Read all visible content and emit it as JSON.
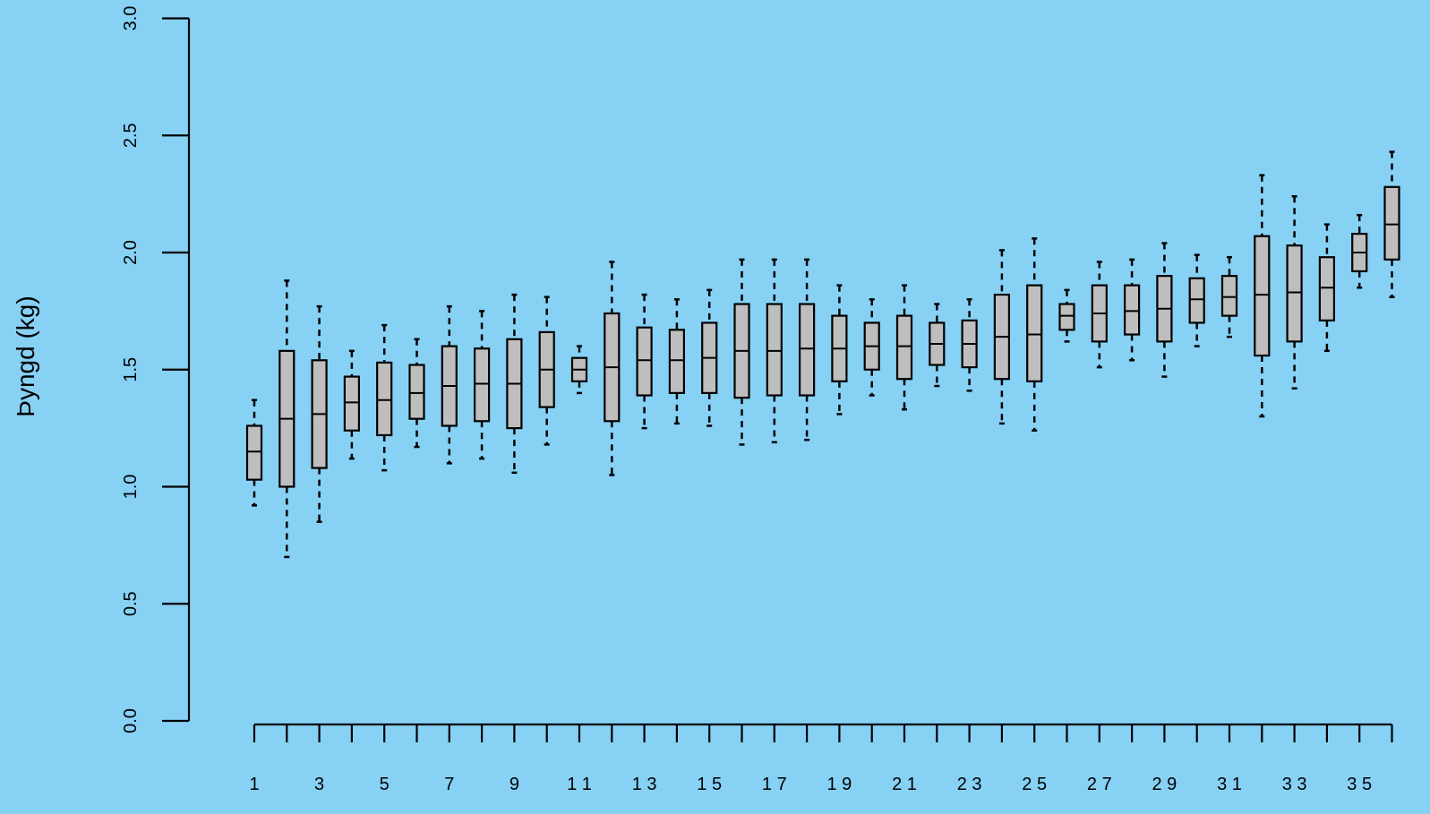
{
  "chart_data": {
    "type": "boxplot",
    "title": "",
    "xlabel": "",
    "ylabel": "Þyngd (kg)",
    "ylim": [
      0,
      3
    ],
    "yticks": [
      "0.0",
      "0.5",
      "1.0",
      "1.5",
      "2.0",
      "2.5",
      "3.0"
    ],
    "x_tick_labels_shown": [
      "1",
      "3",
      "5",
      "7",
      "9",
      "1 1",
      "1 3",
      "1 5",
      "1 7",
      "1 9",
      "2 1",
      "2 3",
      "2 5",
      "2 7",
      "2 9",
      "3 1",
      "3 3",
      "3 5"
    ],
    "colors": {
      "background": "#87d1f5",
      "box_fill": "#bebebe",
      "stroke": "#000000"
    },
    "boxes": [
      {
        "x": 1,
        "min": 0.92,
        "q1": 1.03,
        "median": 1.15,
        "q3": 1.26,
        "max": 1.37
      },
      {
        "x": 2,
        "min": 0.7,
        "q1": 1.0,
        "median": 1.29,
        "q3": 1.58,
        "max": 1.88
      },
      {
        "x": 3,
        "min": 0.85,
        "q1": 1.08,
        "median": 1.31,
        "q3": 1.54,
        "max": 1.77
      },
      {
        "x": 4,
        "min": 1.12,
        "q1": 1.24,
        "median": 1.36,
        "q3": 1.47,
        "max": 1.58
      },
      {
        "x": 5,
        "min": 1.07,
        "q1": 1.22,
        "median": 1.37,
        "q3": 1.53,
        "max": 1.69
      },
      {
        "x": 6,
        "min": 1.17,
        "q1": 1.29,
        "median": 1.4,
        "q3": 1.52,
        "max": 1.63
      },
      {
        "x": 7,
        "min": 1.1,
        "q1": 1.26,
        "median": 1.43,
        "q3": 1.6,
        "max": 1.77
      },
      {
        "x": 8,
        "min": 1.12,
        "q1": 1.28,
        "median": 1.44,
        "q3": 1.59,
        "max": 1.75
      },
      {
        "x": 9,
        "min": 1.06,
        "q1": 1.25,
        "median": 1.44,
        "q3": 1.63,
        "max": 1.82
      },
      {
        "x": 10,
        "min": 1.18,
        "q1": 1.34,
        "median": 1.5,
        "q3": 1.66,
        "max": 1.81
      },
      {
        "x": 11,
        "min": 1.4,
        "q1": 1.45,
        "median": 1.5,
        "q3": 1.55,
        "max": 1.6
      },
      {
        "x": 12,
        "min": 1.05,
        "q1": 1.28,
        "median": 1.51,
        "q3": 1.74,
        "max": 1.96
      },
      {
        "x": 13,
        "min": 1.25,
        "q1": 1.39,
        "median": 1.54,
        "q3": 1.68,
        "max": 1.82
      },
      {
        "x": 14,
        "min": 1.27,
        "q1": 1.4,
        "median": 1.54,
        "q3": 1.67,
        "max": 1.8
      },
      {
        "x": 15,
        "min": 1.26,
        "q1": 1.4,
        "median": 1.55,
        "q3": 1.7,
        "max": 1.84
      },
      {
        "x": 16,
        "min": 1.18,
        "q1": 1.38,
        "median": 1.58,
        "q3": 1.78,
        "max": 1.97
      },
      {
        "x": 17,
        "min": 1.19,
        "q1": 1.39,
        "median": 1.58,
        "q3": 1.78,
        "max": 1.97
      },
      {
        "x": 18,
        "min": 1.2,
        "q1": 1.39,
        "median": 1.59,
        "q3": 1.78,
        "max": 1.97
      },
      {
        "x": 19,
        "min": 1.31,
        "q1": 1.45,
        "median": 1.59,
        "q3": 1.73,
        "max": 1.86
      },
      {
        "x": 20,
        "min": 1.39,
        "q1": 1.5,
        "median": 1.6,
        "q3": 1.7,
        "max": 1.8
      },
      {
        "x": 21,
        "min": 1.33,
        "q1": 1.46,
        "median": 1.6,
        "q3": 1.73,
        "max": 1.86
      },
      {
        "x": 22,
        "min": 1.43,
        "q1": 1.52,
        "median": 1.61,
        "q3": 1.7,
        "max": 1.78
      },
      {
        "x": 23,
        "min": 1.41,
        "q1": 1.51,
        "median": 1.61,
        "q3": 1.71,
        "max": 1.8
      },
      {
        "x": 24,
        "min": 1.27,
        "q1": 1.46,
        "median": 1.64,
        "q3": 1.82,
        "max": 2.01
      },
      {
        "x": 25,
        "min": 1.24,
        "q1": 1.45,
        "median": 1.65,
        "q3": 1.86,
        "max": 2.06
      },
      {
        "x": 26,
        "min": 1.62,
        "q1": 1.67,
        "median": 1.73,
        "q3": 1.78,
        "max": 1.84
      },
      {
        "x": 27,
        "min": 1.51,
        "q1": 1.62,
        "median": 1.74,
        "q3": 1.86,
        "max": 1.96
      },
      {
        "x": 28,
        "min": 1.54,
        "q1": 1.65,
        "median": 1.75,
        "q3": 1.86,
        "max": 1.97
      },
      {
        "x": 29,
        "min": 1.47,
        "q1": 1.62,
        "median": 1.76,
        "q3": 1.9,
        "max": 2.04
      },
      {
        "x": 30,
        "min": 1.6,
        "q1": 1.7,
        "median": 1.8,
        "q3": 1.89,
        "max": 1.99
      },
      {
        "x": 31,
        "min": 1.64,
        "q1": 1.73,
        "median": 1.81,
        "q3": 1.9,
        "max": 1.98
      },
      {
        "x": 32,
        "min": 1.3,
        "q1": 1.56,
        "median": 1.82,
        "q3": 2.07,
        "max": 2.33
      },
      {
        "x": 33,
        "min": 1.42,
        "q1": 1.62,
        "median": 1.83,
        "q3": 2.03,
        "max": 2.24
      },
      {
        "x": 34,
        "min": 1.58,
        "q1": 1.71,
        "median": 1.85,
        "q3": 1.98,
        "max": 2.12
      },
      {
        "x": 35,
        "min": 1.85,
        "q1": 1.92,
        "median": 2.0,
        "q3": 2.08,
        "max": 2.16
      },
      {
        "x": 36,
        "min": 1.81,
        "q1": 1.97,
        "median": 2.12,
        "q3": 2.28,
        "max": 2.43
      }
    ]
  }
}
